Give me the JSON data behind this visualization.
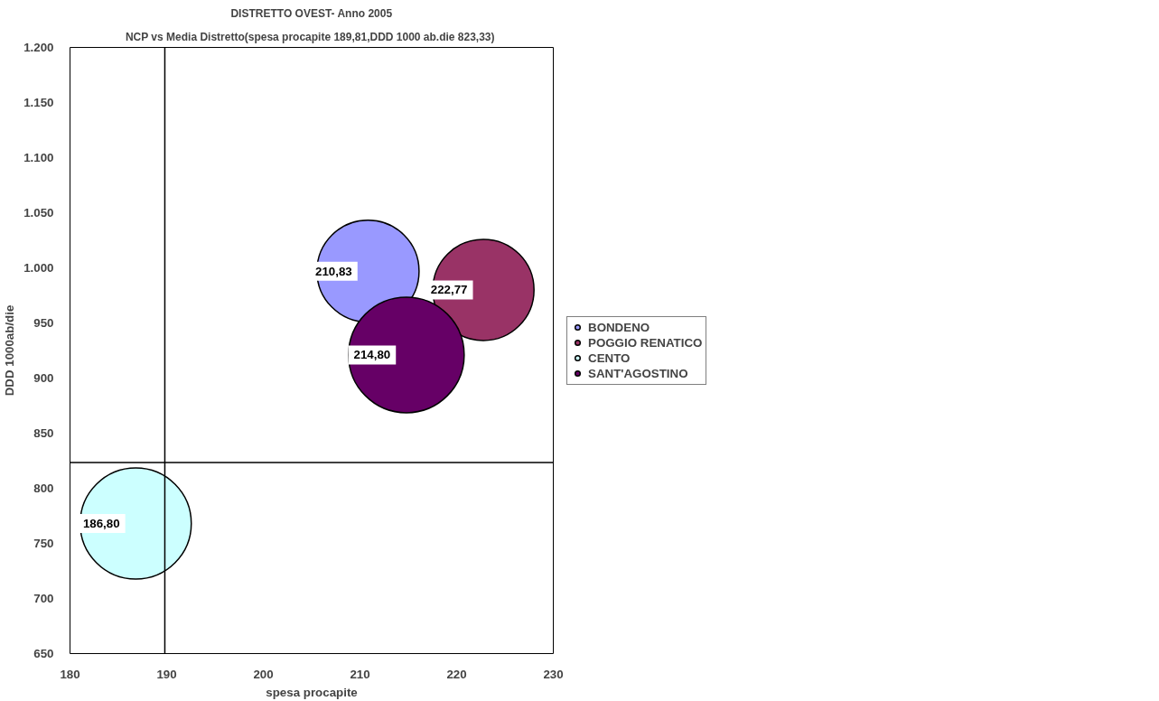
{
  "chart_data": {
    "type": "bubble",
    "title": "DISTRETTO OVEST- Anno 2005",
    "subtitle": "NCP  vs Media Distretto(spesa procapite 189,81,DDD 1000 ab.die 823,33)",
    "xlabel": "spesa procapite",
    "ylabel": "DDD 1000ab/die",
    "xlim": [
      180,
      230
    ],
    "xticks": [
      180,
      190,
      200,
      210,
      220,
      230
    ],
    "ylim": [
      650,
      1200
    ],
    "yticks": [
      {
        "value": 650,
        "label": "650"
      },
      {
        "value": 700,
        "label": "700"
      },
      {
        "value": 750,
        "label": "750"
      },
      {
        "value": 800,
        "label": "800"
      },
      {
        "value": 850,
        "label": "850"
      },
      {
        "value": 900,
        "label": "900"
      },
      {
        "value": 950,
        "label": "950"
      },
      {
        "value": 1000,
        "label": "1.000"
      },
      {
        "value": 1050,
        "label": "1.050"
      },
      {
        "value": 1100,
        "label": "1.100"
      },
      {
        "value": 1150,
        "label": "1.150"
      },
      {
        "value": 1200,
        "label": "1.200"
      }
    ],
    "series": [
      {
        "name": "BONDENO",
        "color": "#9999ff",
        "x": [
          210.83
        ],
        "values": [
          997
        ],
        "sizes": [
          0.78
        ]
      },
      {
        "name": "POGGIO RENATICO",
        "color": "#993366",
        "x": [
          222.77
        ],
        "values": [
          980
        ],
        "sizes": [
          0.766
        ]
      },
      {
        "name": "CENTO",
        "color": "#ccffff",
        "x": [
          186.8
        ],
        "values": [
          768
        ],
        "sizes": [
          0.923
        ]
      },
      {
        "name": "SANT'AGOSTINO",
        "color": "#660066",
        "x": [
          214.8
        ],
        "values": [
          921
        ],
        "sizes": [
          1
        ]
      }
    ],
    "annotations": [
      {
        "text": "210,83",
        "x": 210.83,
        "y": 997
      },
      {
        "text": "222,77",
        "x": 222.77,
        "y": 980
      },
      {
        "text": "186,80",
        "x": 186.8,
        "y": 768
      },
      {
        "text": "214,80",
        "x": 214.8,
        "y": 921
      }
    ],
    "ref_lines": [
      {
        "axis": "x",
        "value": 189.81
      },
      {
        "axis": "y",
        "value": 823.33
      }
    ],
    "grid": false,
    "legend": "right"
  }
}
